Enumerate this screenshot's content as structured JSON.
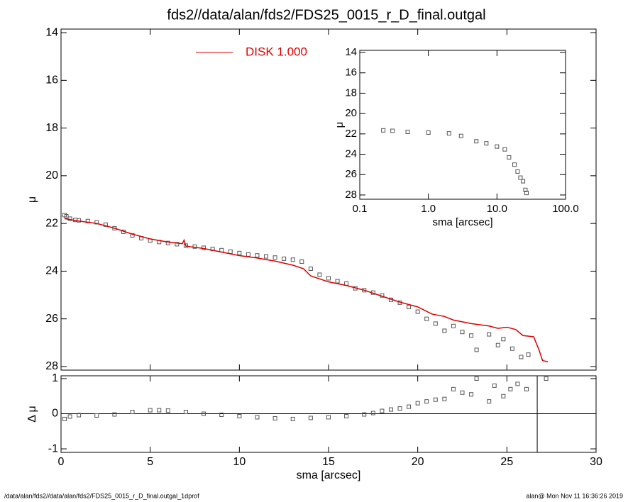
{
  "title": "fds2//data/alan/fds2/FDS25_0015_r_D_final.outgal",
  "footer_left": "/data/alan/fds2//data/alan/fds2/FDS25_0015_r_D_final.outgal_1dprof",
  "footer_right": "alan@  Mon Nov 11 16:36:26 2019",
  "chart_data": [
    {
      "type": "line",
      "ylabel": "μ",
      "xlim": [
        0,
        30
      ],
      "xticks": [
        0,
        5,
        10,
        15,
        20,
        25,
        30
      ],
      "ylim": [
        28.15,
        13.85
      ],
      "yticks": [
        14,
        16,
        18,
        20,
        22,
        24,
        26,
        28
      ],
      "points": {
        "color": "#555555",
        "x": [
          0.2,
          0.3,
          0.5,
          0.8,
          1.0,
          1.5,
          2.0,
          2.5,
          3.0,
          3.5,
          4.0,
          4.5,
          5.0,
          5.5,
          6.0,
          6.5,
          7.0,
          7.5,
          8.0,
          8.5,
          9.0,
          9.5,
          10.0,
          10.5,
          11.0,
          11.5,
          12.0,
          12.5,
          13.0,
          13.5,
          14.0,
          14.5,
          15.0,
          15.5,
          16.0,
          16.5,
          17.0,
          17.5,
          18.0,
          18.5,
          19.0,
          19.5,
          20.0,
          20.5,
          21.0,
          21.5,
          22.0,
          22.5,
          23.0,
          23.3,
          24.0,
          24.5,
          24.8,
          25.3,
          25.8,
          26.2
        ],
        "values": [
          21.65,
          21.7,
          21.8,
          21.85,
          21.87,
          21.9,
          21.95,
          22.05,
          22.2,
          22.35,
          22.5,
          22.62,
          22.72,
          22.78,
          22.82,
          22.87,
          22.93,
          22.97,
          23.02,
          23.07,
          23.12,
          23.18,
          23.24,
          23.3,
          23.34,
          23.38,
          23.43,
          23.48,
          23.52,
          23.6,
          23.9,
          24.15,
          24.3,
          24.42,
          24.52,
          24.72,
          24.8,
          24.9,
          25.02,
          25.2,
          25.32,
          25.5,
          25.7,
          26.0,
          26.2,
          26.5,
          26.3,
          26.55,
          26.7,
          27.3,
          26.65,
          27.1,
          26.85,
          27.25,
          27.6,
          27.5
        ]
      },
      "series": [
        {
          "name": "DISK  1.000",
          "color": "#dd0000",
          "x": [
            0.2,
            1,
            2,
            3,
            4,
            5,
            6,
            6.8,
            6.9,
            7,
            8,
            9,
            10,
            11,
            12,
            13,
            13.6,
            14,
            15,
            16,
            17,
            18,
            19,
            20,
            20.8,
            21.5,
            22,
            23,
            24,
            24.5,
            25,
            25.5,
            25.9,
            26.5,
            26.8,
            27,
            27.3
          ],
          "values": [
            21.8,
            21.9,
            22.0,
            22.2,
            22.45,
            22.65,
            22.78,
            22.85,
            22.7,
            22.95,
            23.05,
            23.2,
            23.35,
            23.45,
            23.58,
            23.75,
            23.9,
            24.2,
            24.45,
            24.6,
            24.8,
            25.05,
            25.3,
            25.5,
            25.8,
            25.9,
            26.05,
            26.2,
            26.3,
            26.4,
            26.35,
            26.45,
            26.7,
            26.75,
            27.3,
            27.75,
            27.8
          ]
        }
      ]
    },
    {
      "type": "scatter",
      "ylabel": "Δ μ",
      "xlabel": "sma [arcsec]",
      "xlim": [
        0,
        30
      ],
      "xticks": [
        0,
        5,
        10,
        15,
        20,
        25,
        30
      ],
      "ylim": [
        -1.1,
        1.08
      ],
      "yticks": [
        -1,
        0,
        1
      ],
      "vline": 26.7,
      "color": "#555555",
      "x": [
        0.2,
        0.5,
        1,
        2,
        3,
        4,
        5,
        5.5,
        6,
        7,
        8,
        9,
        10,
        11,
        12,
        13,
        14,
        15,
        16,
        17,
        17.5,
        18,
        18.5,
        19,
        19.5,
        20,
        20.5,
        21,
        21.5,
        22,
        22.5,
        23,
        23.3,
        24,
        24.3,
        24.8,
        25.2,
        25.6,
        26.1,
        27.2
      ],
      "values": [
        -0.15,
        -0.08,
        -0.04,
        -0.05,
        -0.02,
        0.05,
        0.1,
        0.1,
        0.09,
        0.05,
        0.0,
        -0.03,
        -0.07,
        -0.1,
        -0.13,
        -0.15,
        -0.12,
        -0.1,
        -0.07,
        -0.02,
        0.02,
        0.08,
        0.12,
        0.15,
        0.2,
        0.3,
        0.35,
        0.4,
        0.42,
        0.7,
        0.6,
        0.55,
        1.0,
        0.35,
        0.8,
        0.5,
        0.7,
        0.85,
        0.7,
        1.0
      ]
    },
    {
      "type": "scatter",
      "ylabel": "μ",
      "xlabel": "sma [arcsec]",
      "xlog": true,
      "xlim": [
        0.1,
        100
      ],
      "xticks": [
        0.1,
        {
          "value": 1,
          "label": "1.0"
        },
        {
          "value": 10,
          "label": "10.0"
        },
        {
          "value": 100,
          "label": "100.0"
        }
      ],
      "ylim": [
        28.42,
        13.79
      ],
      "yticks": [
        14,
        16,
        18,
        20,
        22,
        24,
        26,
        28
      ],
      "color": "#555555",
      "x": [
        0.22,
        0.3,
        0.5,
        1,
        2,
        3,
        5,
        7,
        10,
        13,
        15,
        18,
        20,
        22,
        24,
        26,
        27
      ],
      "values": [
        21.65,
        21.7,
        21.8,
        21.87,
        21.95,
        22.2,
        22.72,
        22.93,
        23.24,
        23.52,
        24.3,
        25.02,
        25.7,
        26.3,
        26.65,
        27.5,
        27.8
      ]
    }
  ]
}
